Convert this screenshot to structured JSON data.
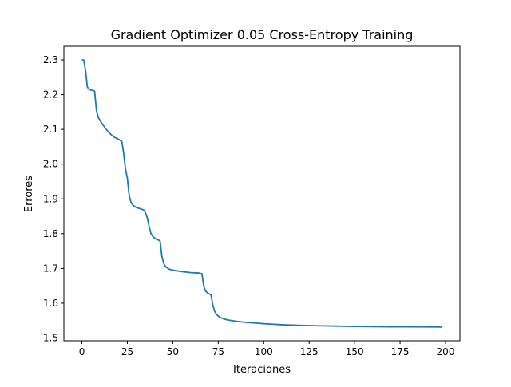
{
  "chart_data": {
    "type": "line",
    "title": "Gradient Optimizer 0.05 Cross-Entropy Training",
    "xlabel": "Iteraciones",
    "ylabel": "Errores",
    "xlim": [
      -9.9,
      207.9
    ],
    "ylim": [
      1.492,
      2.339
    ],
    "xticks": [
      0,
      25,
      50,
      75,
      100,
      125,
      150,
      175,
      200
    ],
    "xtick_labels": [
      "0",
      "25",
      "50",
      "75",
      "100",
      "125",
      "150",
      "175",
      "200"
    ],
    "yticks": [
      1.5,
      1.6,
      1.7,
      1.8,
      1.9,
      2.0,
      2.1,
      2.2,
      2.3
    ],
    "ytick_labels": [
      "1.5",
      "1.6",
      "1.7",
      "1.8",
      "1.9",
      "2.0",
      "2.1",
      "2.2",
      "2.3"
    ],
    "grid": false,
    "legend": "none",
    "line_color": "#1f77b4",
    "series": [
      {
        "x": [
          0,
          1,
          2,
          3,
          4,
          5,
          6,
          7,
          8,
          9,
          10,
          12,
          14,
          16,
          18,
          20,
          22,
          23,
          24,
          25,
          26,
          27,
          28,
          30,
          32,
          34,
          35,
          36,
          37,
          38,
          39,
          40,
          41,
          42,
          43,
          44,
          45,
          46,
          48,
          50,
          55,
          60,
          64,
          66,
          67,
          68,
          69,
          70,
          71,
          72,
          73,
          74,
          75,
          76,
          78,
          80,
          85,
          90,
          95,
          100,
          110,
          120,
          130,
          140,
          150,
          160,
          170,
          180,
          190,
          198
        ],
        "y": [
          2.3,
          2.3,
          2.27,
          2.222,
          2.215,
          2.213,
          2.212,
          2.21,
          2.155,
          2.135,
          2.125,
          2.11,
          2.096,
          2.085,
          2.077,
          2.072,
          2.065,
          2.03,
          1.985,
          1.96,
          1.91,
          1.89,
          1.882,
          1.875,
          1.872,
          1.868,
          1.86,
          1.845,
          1.82,
          1.8,
          1.792,
          1.787,
          1.785,
          1.782,
          1.779,
          1.735,
          1.715,
          1.705,
          1.698,
          1.695,
          1.691,
          1.688,
          1.687,
          1.685,
          1.65,
          1.635,
          1.63,
          1.627,
          1.624,
          1.595,
          1.577,
          1.568,
          1.563,
          1.559,
          1.555,
          1.552,
          1.548,
          1.545,
          1.543,
          1.541,
          1.538,
          1.536,
          1.535,
          1.534,
          1.533,
          1.5325,
          1.532,
          1.5318,
          1.5316,
          1.5315
        ]
      }
    ]
  }
}
